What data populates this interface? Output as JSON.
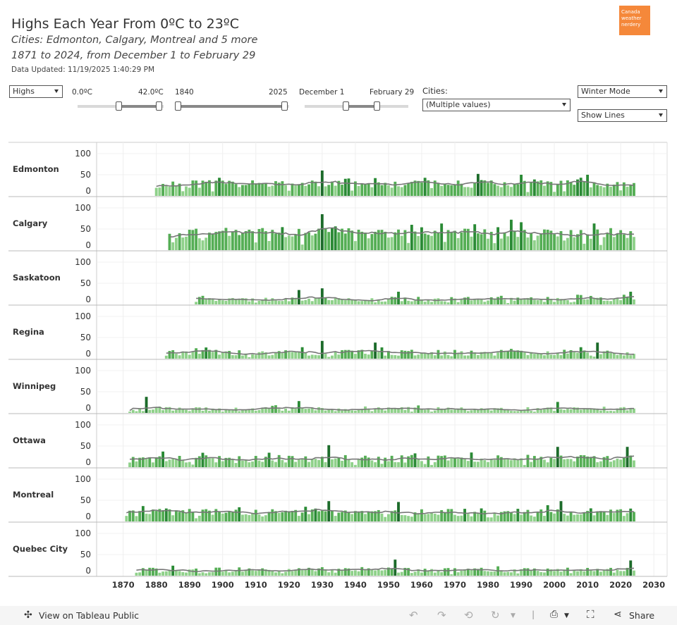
{
  "header": {
    "title": "Highs Each Year From 0ºC to 23ºC",
    "subtitle1": "Cities: Edmonton, Calgary, Montreal and 5 more",
    "subtitle2": "1871 to 2024, from December 1 to February 29",
    "updated": "Data Updated: 11/19/2025 1:40:29 PM",
    "logo_text": "Canada weather nerdery"
  },
  "controls": {
    "measure": "Highs",
    "temp_min": "0.0ºC",
    "temp_max": "42.0ºC",
    "year_min": "1840",
    "year_max": "2025",
    "date_min": "December 1",
    "date_max": "February 29",
    "cities_label": "Cities:",
    "cities_value": "(Multiple values)",
    "mode": "Winter Mode",
    "lines": "Show Lines"
  },
  "footer": {
    "view_label": "View on Tableau Public",
    "share_label": "Share"
  },
  "colors": {
    "bar_light": "#8fd18a",
    "bar_mid": "#55ae55",
    "bar_dark": "#2a8a35",
    "bar_darkest": "#1c6b2a",
    "line": "#777777"
  },
  "chart_data": {
    "type": "bar",
    "x_ticks": [
      1870,
      1880,
      1890,
      1900,
      1910,
      1920,
      1930,
      1940,
      1950,
      1960,
      1970,
      1980,
      1990,
      2000,
      2010,
      2020,
      2030
    ],
    "xlim": [
      1862,
      2034
    ],
    "y_ticks": [
      0,
      50,
      100
    ],
    "ylim": [
      0,
      115
    ],
    "overlay": "line",
    "series": [
      {
        "name": "Edmonton",
        "start": 1880,
        "end": 2024,
        "base": 28,
        "amp": 9,
        "seed": 11,
        "spikes": [
          [
            1930,
            60
          ],
          [
            1977,
            52
          ],
          [
            1990,
            50
          ],
          [
            2010,
            50
          ]
        ]
      },
      {
        "name": "Calgary",
        "start": 1884,
        "end": 2024,
        "base": 40,
        "amp": 13,
        "seed": 23,
        "spikes": [
          [
            1930,
            85
          ],
          [
            1987,
            72
          ],
          [
            1990,
            66
          ],
          [
            1966,
            63
          ],
          [
            1957,
            60
          ]
        ]
      },
      {
        "name": "Saskatoon",
        "start": 1892,
        "end": 2024,
        "base": 12,
        "amp": 6,
        "seed": 37,
        "spikes": [
          [
            1930,
            38
          ],
          [
            1923,
            34
          ],
          [
            1953,
            30
          ],
          [
            2023,
            30
          ]
        ]
      },
      {
        "name": "Regina",
        "start": 1883,
        "end": 2024,
        "base": 14,
        "amp": 7,
        "seed": 41,
        "spikes": [
          [
            1930,
            42
          ],
          [
            1946,
            38
          ],
          [
            2013,
            38
          ]
        ]
      },
      {
        "name": "Winnipeg",
        "start": 1872,
        "end": 2024,
        "base": 9,
        "amp": 5,
        "seed": 53,
        "spikes": [
          [
            1877,
            38
          ],
          [
            1923,
            28
          ],
          [
            2001,
            26
          ]
        ]
      },
      {
        "name": "Ottawa",
        "start": 1872,
        "end": 2024,
        "base": 20,
        "amp": 9,
        "seed": 67,
        "spikes": [
          [
            1932,
            52
          ],
          [
            2001,
            48
          ],
          [
            2022,
            48
          ]
        ]
      },
      {
        "name": "Montreal",
        "start": 1871,
        "end": 2024,
        "base": 22,
        "amp": 9,
        "seed": 79,
        "spikes": [
          [
            1932,
            48
          ],
          [
            1953,
            46
          ],
          [
            2002,
            48
          ]
        ]
      },
      {
        "name": "Quebec City",
        "start": 1874,
        "end": 2024,
        "base": 13,
        "amp": 6,
        "seed": 83,
        "spikes": [
          [
            1952,
            38
          ],
          [
            2023,
            36
          ]
        ]
      }
    ]
  }
}
